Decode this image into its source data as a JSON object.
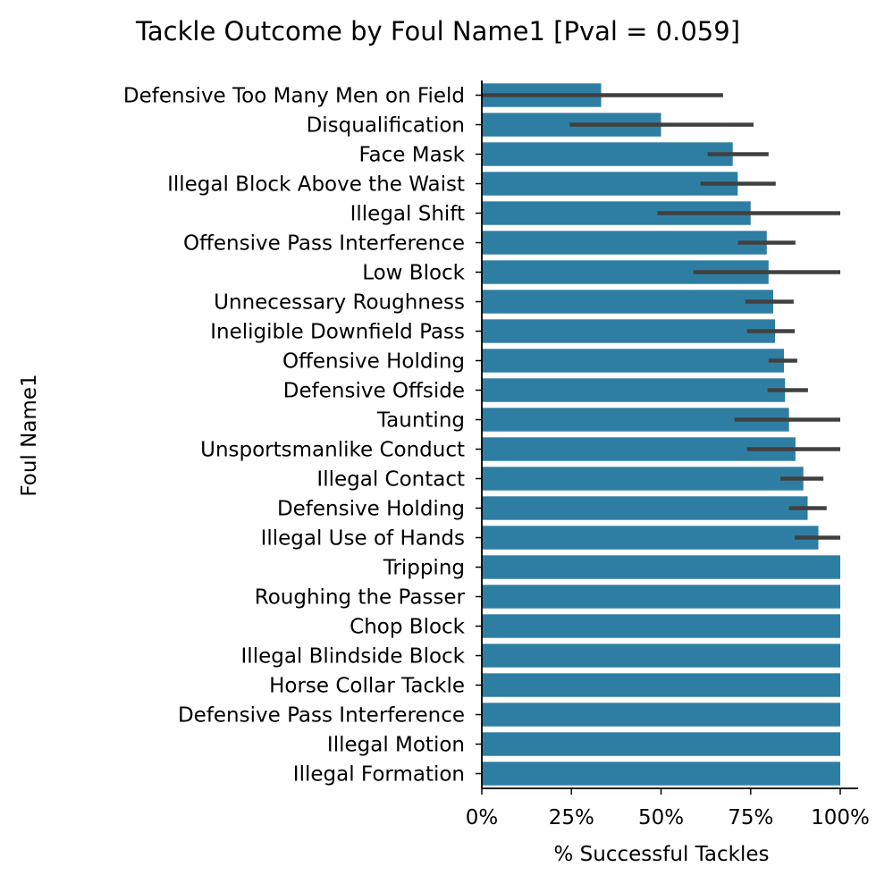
{
  "chart_data": {
    "type": "bar",
    "orientation": "horizontal",
    "title": "Tackle Outcome by Foul Name1 [Pval = 0.059]",
    "xlabel": "% Successful Tackles",
    "ylabel": "Foul Name1",
    "xlim": [
      0,
      1.05
    ],
    "xticks": [
      0,
      0.25,
      0.5,
      0.75,
      1.0
    ],
    "xtick_labels": [
      "0%",
      "25%",
      "50%",
      "75%",
      "100%"
    ],
    "grid": false,
    "bar_color": "#2e7ea3",
    "errorbar_color": "#404040",
    "categories": [
      "Defensive Too Many Men on Field",
      "Disqualification",
      "Face Mask",
      "Illegal Block Above the Waist",
      "Illegal Shift",
      "Offensive Pass Interference",
      "Low Block",
      "Unnecessary Roughness",
      "Ineligible Downfield Pass",
      "Offensive Holding",
      "Defensive Offside",
      "Taunting",
      "Unsportsmanlike Conduct",
      "Illegal Contact",
      "Defensive Holding",
      "Illegal Use of Hands",
      "Tripping",
      "Roughing the Passer",
      "Chop Block",
      "Illegal Blindside Block",
      "Horse Collar Tackle",
      "Defensive Pass Interference",
      "Illegal Motion",
      "Illegal Formation"
    ],
    "values": [
      0.333,
      0.5,
      0.7,
      0.714,
      0.75,
      0.795,
      0.8,
      0.813,
      0.818,
      0.843,
      0.846,
      0.857,
      0.875,
      0.897,
      0.909,
      0.939,
      1.0,
      1.0,
      1.0,
      1.0,
      1.0,
      1.0,
      1.0,
      1.0
    ],
    "ci_low": [
      0.0,
      0.245,
      0.63,
      0.61,
      0.49,
      0.715,
      0.59,
      0.735,
      0.74,
      0.8,
      0.797,
      0.705,
      0.74,
      0.833,
      0.857,
      0.873,
      null,
      null,
      null,
      null,
      null,
      null,
      null,
      null
    ],
    "ci_high": [
      0.673,
      0.758,
      0.8,
      0.82,
      1.0,
      0.875,
      1.0,
      0.87,
      0.873,
      0.88,
      0.91,
      1.0,
      1.0,
      0.953,
      0.962,
      1.0,
      null,
      null,
      null,
      null,
      null,
      null,
      null,
      null
    ]
  }
}
